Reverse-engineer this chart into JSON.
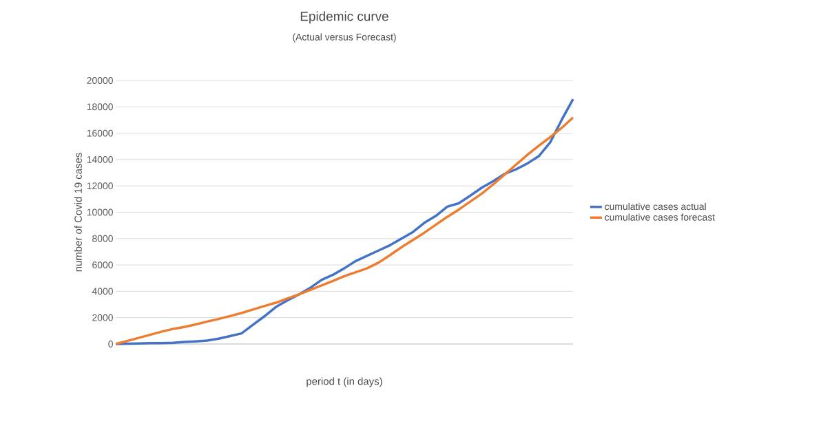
{
  "chart_data": {
    "type": "line",
    "title": "Epidemic curve",
    "subtitle": "(Actual versus Forecast)",
    "xlabel": "period t (in days)",
    "ylabel": "number of Covid 19 cases",
    "categories": [
      null,
      null,
      null,
      null,
      null,
      null,
      null,
      null,
      null,
      null,
      null,
      null,
      null,
      null,
      null,
      null,
      null,
      null,
      null,
      null,
      null,
      null,
      null,
      null,
      null,
      null,
      null,
      null,
      null,
      null,
      null,
      null,
      null,
      null,
      null,
      null,
      null,
      null,
      null,
      null,
      null
    ],
    "series": [
      {
        "name": "cumulative cases actual",
        "color": "#4472c4",
        "values": [
          0,
          20,
          40,
          60,
          70,
          90,
          150,
          200,
          260,
          400,
          600,
          800,
          1450,
          2100,
          2800,
          3300,
          3750,
          4250,
          4860,
          5250,
          5750,
          6300,
          6700,
          7100,
          7500,
          8000,
          8500,
          9200,
          9720,
          10420,
          10680,
          11250,
          11850,
          12350,
          12900,
          13250,
          13700,
          14250,
          15300,
          17000,
          18580
        ]
      },
      {
        "name": "cumulative cases forecast",
        "color": "#ed7d31",
        "values": [
          0,
          230,
          460,
          700,
          930,
          1140,
          1290,
          1490,
          1700,
          1900,
          2120,
          2350,
          2620,
          2880,
          3130,
          3450,
          3750,
          4100,
          4450,
          4780,
          5150,
          5450,
          5750,
          6180,
          6750,
          7350,
          7900,
          8450,
          9050,
          9650,
          10200,
          10800,
          11400,
          12100,
          12850,
          13600,
          14350,
          15050,
          15700,
          16400,
          17190
        ]
      }
    ],
    "ylim": [
      0,
      20000
    ],
    "yticks": [
      0,
      2000,
      4000,
      6000,
      8000,
      10000,
      12000,
      14000,
      16000,
      18000,
      20000
    ],
    "grid": "y",
    "legend": "right",
    "line_style": "solid",
    "marker": "none"
  }
}
